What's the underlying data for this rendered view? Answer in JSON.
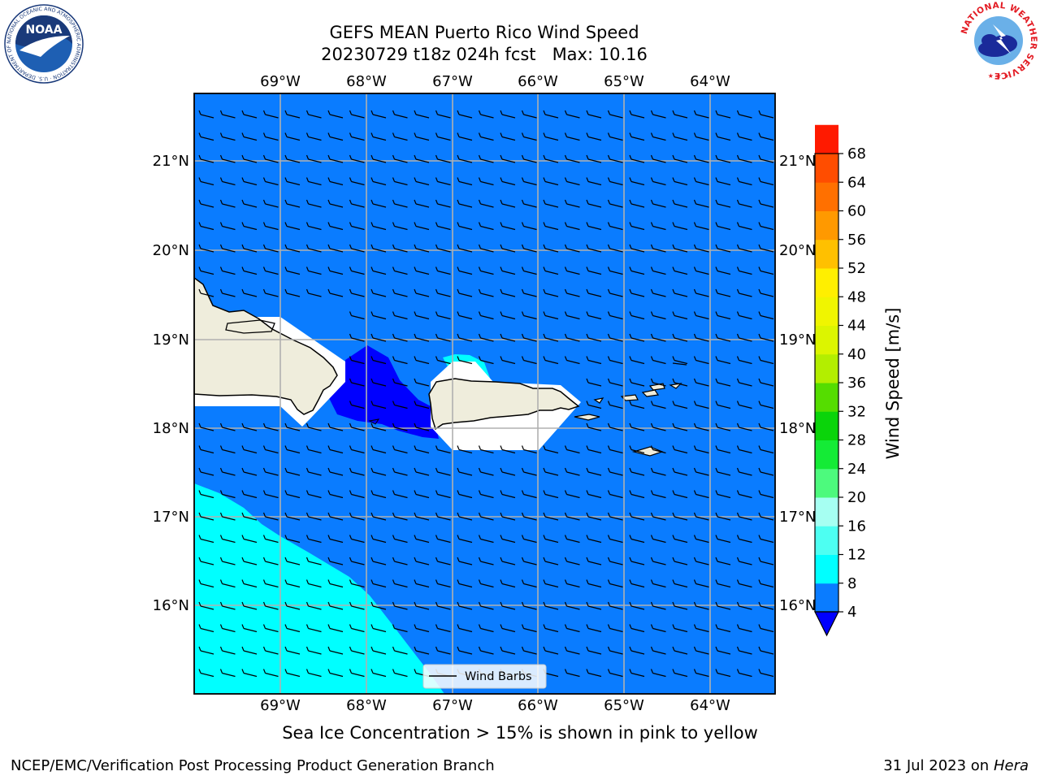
{
  "title": {
    "line1": "GEFS MEAN Puerto Rico Wind Speed",
    "line2": "20230729 t18z 024h fcst   Max: 10.16"
  },
  "map": {
    "lon_labels": [
      "69°W",
      "68°W",
      "67°W",
      "66°W",
      "65°W",
      "64°W"
    ],
    "lat_labels": [
      "21°N",
      "20°N",
      "19°N",
      "18°N",
      "17°N",
      "16°N"
    ],
    "legend_label": "Wind Barbs",
    "colors": {
      "ocean_fill": "#0a7cff",
      "low_wind_fill": "#00ffff",
      "calm_fill": "#0000ff",
      "land_fill": "#efeddc",
      "grid": "#b0b0b0"
    }
  },
  "colorbar": {
    "label": "Wind Speed [m/s]",
    "ticks": [
      "68",
      "64",
      "60",
      "56",
      "52",
      "48",
      "44",
      "40",
      "36",
      "32",
      "28",
      "24",
      "20",
      "16",
      "12",
      "8",
      "4"
    ],
    "colors": [
      "#0a7cff",
      "#00ffff",
      "#4dfff2",
      "#a6fff2",
      "#4dfa7d",
      "#14eb36",
      "#0ad40a",
      "#55dd00",
      "#b3ee00",
      "#dcf500",
      "#f0f500",
      "#ffef00",
      "#ffc000",
      "#ff9900",
      "#ff7000",
      "#ff4d00",
      "#ff1a00"
    ],
    "extend_color": "#0000ff"
  },
  "note": "Sea Ice Concentration > 15% is shown in pink to yellow",
  "footer": {
    "left": "NCEP/EMC/Verification Post Processing Product Generation Branch",
    "right_prefix": "31 Jul 2023 on ",
    "right_host": "Hera"
  },
  "logos": {
    "noaa": "NOAA",
    "noaa_ring": "NATIONAL OCEANIC AND ATMOSPHERIC ADMINISTRATION · U.S. DEPARTMENT OF COMMERCE",
    "nws_ring": "NATIONAL WEATHER SERVICE"
  }
}
